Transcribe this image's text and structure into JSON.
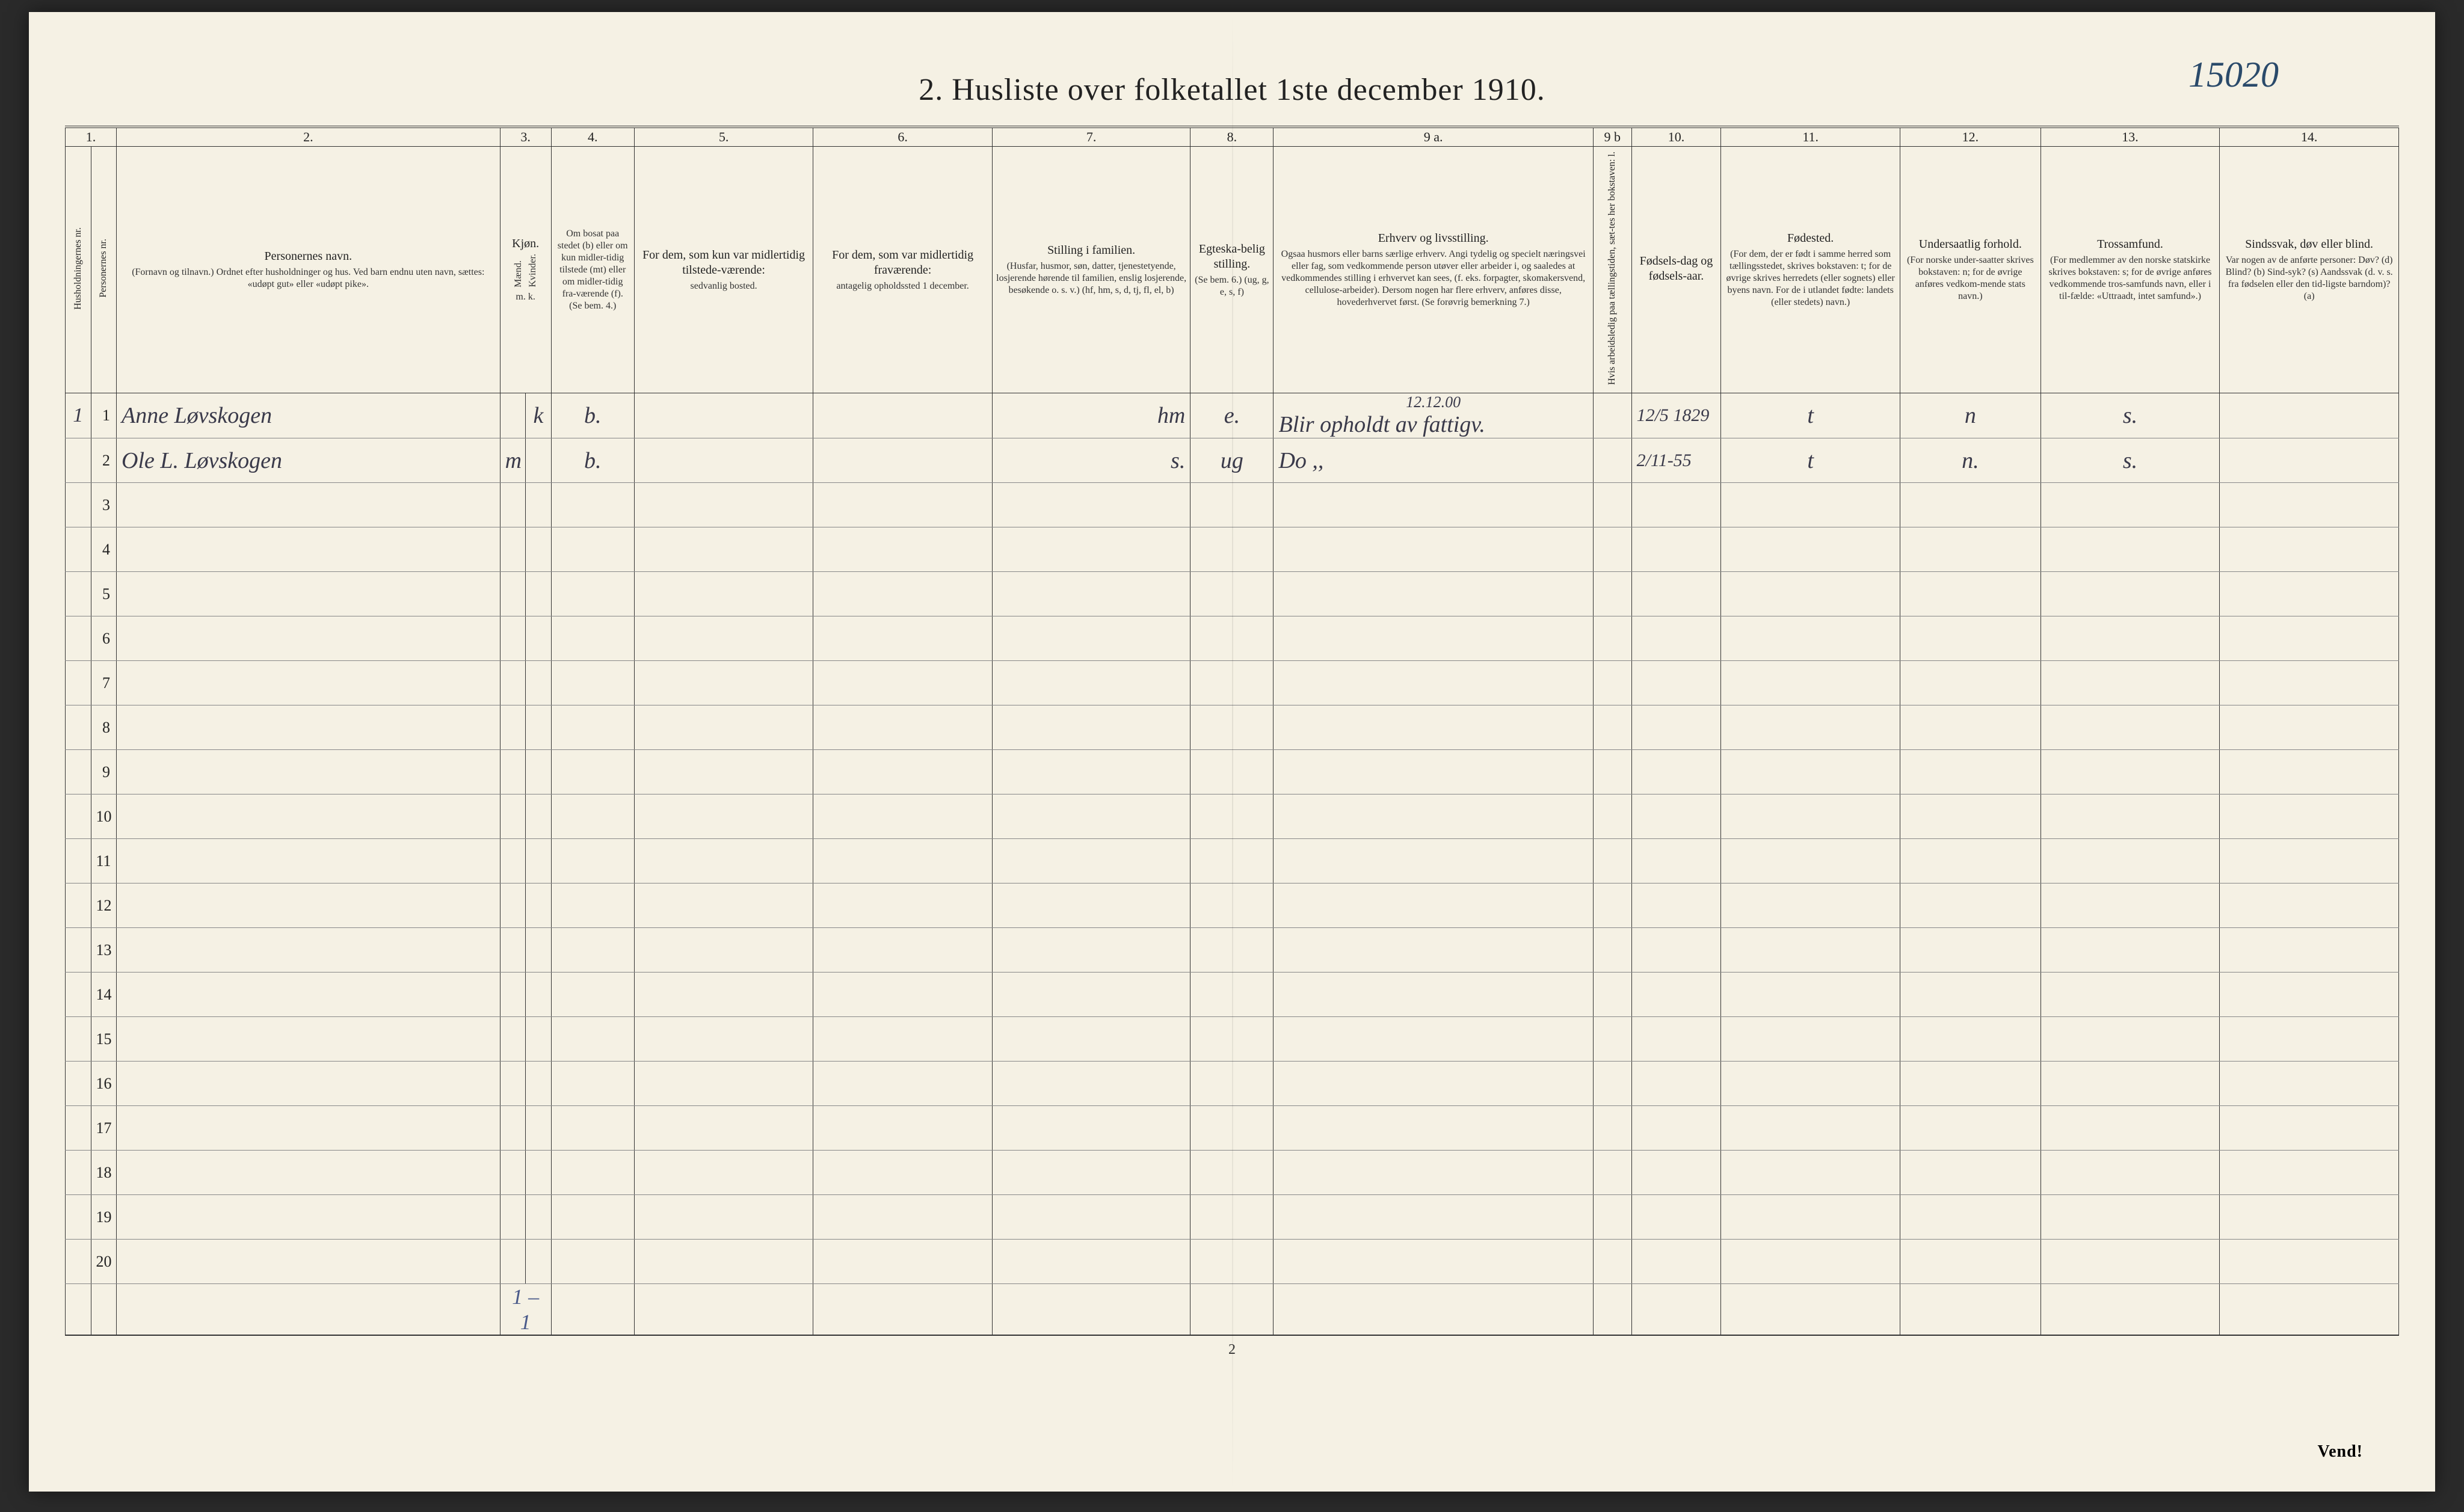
{
  "title": "2.  Husliste over folketallet 1ste december 1910.",
  "annotation": "15020",
  "page_number": "2",
  "vend": "Vend!",
  "tally": "1 – 1",
  "col_numbers": [
    "1.",
    "2.",
    "3.",
    "4.",
    "5.",
    "6.",
    "7.",
    "8.",
    "9 a.",
    "9 b",
    "10.",
    "11.",
    "12.",
    "13.",
    "14."
  ],
  "headers": {
    "c1a": "Husholdningernes nr.",
    "c1b": "Personernes nr.",
    "c2_main": "Personernes navn.",
    "c2_sub": "(Fornavn og tilnavn.)\nOrdnet efter husholdninger og hus.\nVed barn endnu uten navn, sættes: «udøpt gut» eller «udøpt pike».",
    "c3a": "Mænd.",
    "c3b": "Kvinder.",
    "c3_top": "Kjøn.",
    "c3_bot": "m. k.",
    "c4_main": "Om bosat paa stedet (b) eller om kun midler-tidig tilstede (mt) eller om midler-tidig fra-værende (f).",
    "c4_sub": "(Se bem. 4.)",
    "c5_main": "For dem, som kun var midlertidig tilstede-værende:",
    "c5_sub": "sedvanlig bosted.",
    "c6_main": "For dem, som var midlertidig fraværende:",
    "c6_sub": "antagelig opholdssted 1 december.",
    "c7_main": "Stilling i familien.",
    "c7_sub": "(Husfar, husmor, søn, datter, tjenestetyende, losjerende hørende til familien, enslig losjerende, besøkende o. s. v.)\n(hf, hm, s, d, tj, fl, el, b)",
    "c8_main": "Egteska-belig stilling.",
    "c8_sub": "(Se bem. 6.)\n(ug, g, e, s, f)",
    "c9a_main": "Erhverv og livsstilling.",
    "c9a_sub": "Ogsaa husmors eller barns særlige erhverv. Angi tydelig og specielt næringsvei eller fag, som vedkommende person utøver eller arbeider i, og saaledes at vedkommendes stilling i erhvervet kan sees, (f. eks. forpagter, skomakersvend, cellulose-arbeider). Dersom nogen har flere erhverv, anføres disse, hovederhvervet først.\n(Se forøvrig bemerkning 7.)",
    "c9b": "Hvis arbeidsledig paa tællingstiden, sæt-tes her bokstaven: l.",
    "c10_main": "Fødsels-dag og fødsels-aar.",
    "c11_main": "Fødested.",
    "c11_sub": "(For dem, der er født i samme herred som tællingsstedet, skrives bokstaven: t; for de øvrige skrives herredets (eller sognets) eller byens navn. For de i utlandet fødte: landets (eller stedets) navn.)",
    "c12_main": "Undersaatlig forhold.",
    "c12_sub": "(For norske under-saatter skrives bokstaven: n; for de øvrige anføres vedkom-mende stats navn.)",
    "c13_main": "Trossamfund.",
    "c13_sub": "(For medlemmer av den norske statskirke skrives bokstaven: s; for de øvrige anføres vedkommende tros-samfunds navn, eller i til-fælde: «Uttraadt, intet samfund».)",
    "c14_main": "Sindssvak, døv eller blind.",
    "c14_sub": "Var nogen av de anførte personer:\nDøv?        (d)\nBlind?       (b)\nSind-syk?  (s)\nAandssvak (d. v. s. fra fødselen eller den tid-ligste barndom)? (a)"
  },
  "rows": [
    {
      "hh": "1",
      "pn": "1",
      "name": "Anne Løvskogen",
      "sex_m": "",
      "sex_k": "k",
      "res": "b.",
      "c5": "",
      "c6": "",
      "fam": "hm",
      "mar": "e.",
      "occ": "Blir opholdt av fattigv.",
      "occ_sup": "12.12.00",
      "born": "12/5 1829",
      "place": "t",
      "nat": "n",
      "rel": "s.",
      "dis": ""
    },
    {
      "hh": "",
      "pn": "2",
      "name": "Ole L. Løvskogen",
      "sex_m": "m",
      "sex_k": "",
      "res": "b.",
      "c5": "",
      "c6": "",
      "fam": "s.",
      "mar": "ug",
      "occ": "Do   ,,",
      "occ_sup": "",
      "born": "2/11-55",
      "place": "t",
      "nat": "n.",
      "rel": "s.",
      "dis": ""
    }
  ],
  "blank_rows": [
    3,
    4,
    5,
    6,
    7,
    8,
    9,
    10,
    11,
    12,
    13,
    14,
    15,
    16,
    17,
    18,
    19,
    20
  ]
}
